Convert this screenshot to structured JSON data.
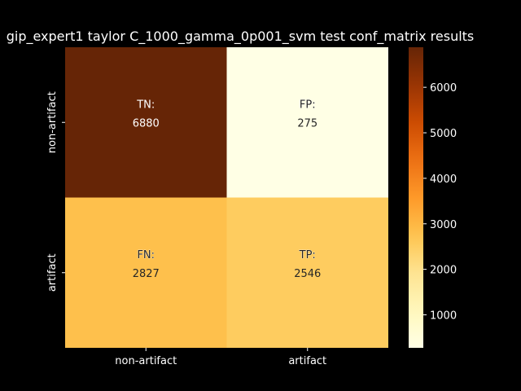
{
  "chart_data": {
    "type": "heatmap",
    "title": "gip_expert1 taylor C_1000_gamma_0p001_svm test conf_matrix results",
    "xlabel": "",
    "ylabel": "",
    "x_categories": [
      "non-artifact",
      "artifact"
    ],
    "y_categories": [
      "non-artifact",
      "artifact"
    ],
    "cells": [
      {
        "row": 0,
        "col": 0,
        "label": "TN:",
        "value": 6880,
        "text": "6880"
      },
      {
        "row": 0,
        "col": 1,
        "label": "FP:",
        "value": 275,
        "text": "275"
      },
      {
        "row": 1,
        "col": 0,
        "label": "FN:",
        "value": 2827,
        "text": "2827"
      },
      {
        "row": 1,
        "col": 1,
        "label": "TP:",
        "value": 2546,
        "text": "2546"
      }
    ],
    "colorbar": {
      "colormap": "YlOrBr",
      "vmin": 275,
      "vmax": 6880,
      "ticks": [
        1000,
        2000,
        3000,
        4000,
        5000,
        6000
      ],
      "tick_labels": [
        "1000",
        "2000",
        "3000",
        "4000",
        "5000",
        "6000"
      ]
    },
    "colors": {
      "background": "#000000",
      "foreground": "#ffffff",
      "dark_text": "#262626",
      "light_text": "#ffffff"
    }
  }
}
